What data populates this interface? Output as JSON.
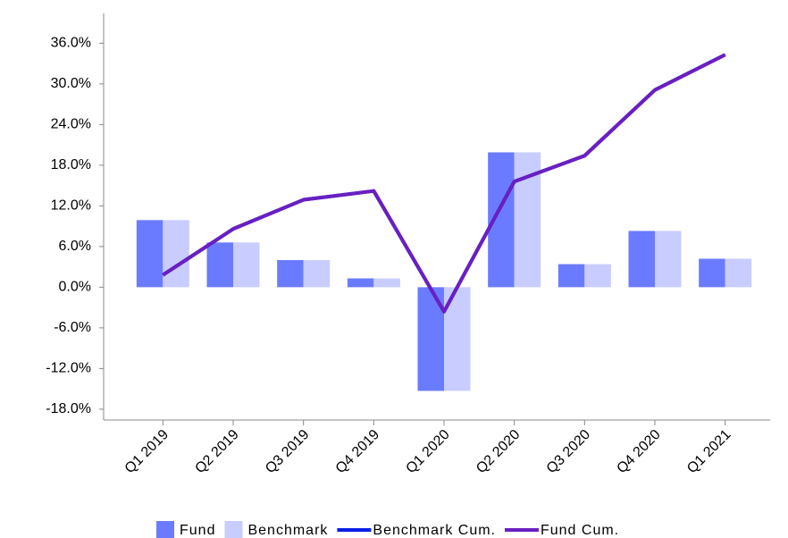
{
  "chart_data": {
    "type": "bar_line",
    "categories": [
      "Q1 2019",
      "Q2 2019",
      "Q3 2019",
      "Q4 2019",
      "Q1 2020",
      "Q2 2020",
      "Q3 2020",
      "Q4 2020",
      "Q1 2021"
    ],
    "series": [
      {
        "name": "Fund",
        "type": "bar",
        "color": "#6b7bff",
        "values": [
          9.9,
          6.6,
          4.0,
          1.3,
          -15.3,
          19.9,
          3.4,
          8.3,
          4.2
        ]
      },
      {
        "name": "Benchmark",
        "type": "bar",
        "color": "#c8ccff",
        "values": [
          9.9,
          6.6,
          4.0,
          1.3,
          -15.3,
          19.9,
          3.4,
          8.3,
          4.2
        ]
      },
      {
        "name": "Benchmark Cum.",
        "type": "line",
        "color": "#0a1ee6",
        "values": [
          1.8,
          8.6,
          12.9,
          14.2,
          -3.6,
          15.6,
          19.4,
          29.1,
          34.3
        ]
      },
      {
        "name": "Fund Cum.",
        "type": "line",
        "color": "#6a1fc2",
        "values": [
          1.8,
          8.6,
          12.9,
          14.2,
          -3.6,
          15.6,
          19.4,
          29.1,
          34.3
        ]
      }
    ],
    "ylim": [
      -19.6,
      40.4
    ],
    "yticks": [
      {
        "value": -18,
        "label": "-18.0%"
      },
      {
        "value": -12,
        "label": "-12.0%"
      },
      {
        "value": -6,
        "label": "-6.0%"
      },
      {
        "value": 0,
        "label": "0.0%"
      },
      {
        "value": 6,
        "label": "6.0%"
      },
      {
        "value": 12,
        "label": "12.0%"
      },
      {
        "value": 18,
        "label": "18.0%"
      },
      {
        "value": 24,
        "label": "24.0%"
      },
      {
        "value": 30,
        "label": "30.0%"
      },
      {
        "value": 36,
        "label": "36.0%"
      }
    ],
    "grid": false,
    "legend": "bottom"
  }
}
